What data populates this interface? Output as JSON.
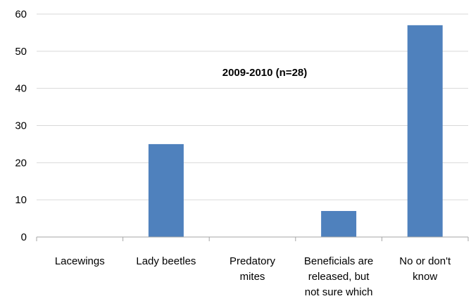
{
  "chart_data": {
    "type": "bar",
    "title": "2009-2010 (n=28)",
    "categories": [
      [
        "Lacewings"
      ],
      [
        "Lady beetles"
      ],
      [
        "Predatory",
        "mites"
      ],
      [
        "Beneficials are",
        "released, but",
        "not sure which"
      ],
      [
        "No or don't",
        "know"
      ]
    ],
    "values": [
      0,
      25,
      0,
      7,
      57
    ],
    "ylim": [
      0,
      60
    ],
    "yticks": [
      0,
      10,
      20,
      30,
      40,
      50,
      60
    ],
    "xlabel": "",
    "ylabel": "",
    "grid": true,
    "colors": {
      "bar": "#4F81BD",
      "grid": "#D9D9D9",
      "axis": "#A6A6A6"
    }
  }
}
